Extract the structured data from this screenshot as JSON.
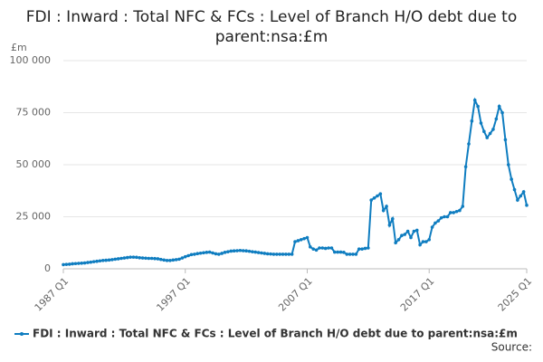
{
  "chart_data": {
    "type": "line",
    "title": "FDI : Inward : Total NFC & FCs : Level of Branch H/O debt due to parent:nsa:£m",
    "y_label": "£m",
    "source": "Source:",
    "categories": [
      "1987 Q1",
      null,
      null,
      null,
      null,
      null,
      null,
      null,
      null,
      null,
      null,
      null,
      null,
      null,
      null,
      null,
      null,
      null,
      null,
      null,
      null,
      null,
      null,
      null,
      null,
      null,
      null,
      null,
      null,
      null,
      null,
      null,
      null,
      null,
      null,
      null,
      null,
      null,
      null,
      null,
      "1997 Q1",
      null,
      null,
      null,
      null,
      null,
      null,
      null,
      null,
      null,
      null,
      null,
      null,
      null,
      null,
      null,
      null,
      null,
      null,
      null,
      null,
      null,
      null,
      null,
      null,
      null,
      null,
      null,
      null,
      null,
      null,
      null,
      null,
      null,
      null,
      null,
      null,
      null,
      null,
      null,
      "2007 Q1",
      null,
      null,
      null,
      null,
      null,
      null,
      null,
      null,
      null,
      null,
      null,
      null,
      null,
      null,
      null,
      null,
      null,
      null,
      null,
      null,
      null,
      null,
      null,
      null,
      null,
      null,
      null,
      null,
      null,
      null,
      null,
      null,
      null,
      null,
      null,
      null,
      null,
      null,
      null,
      "2017 Q1",
      null,
      null,
      null,
      null,
      null,
      null,
      null,
      null,
      null,
      null,
      null,
      null,
      null,
      null,
      null,
      null,
      null,
      null,
      null,
      null,
      null,
      null,
      null,
      null,
      null,
      null,
      null,
      null,
      null,
      null,
      null,
      "2025 Q1"
    ],
    "series": [
      {
        "name": "FDI : Inward : Total NFC & FCs : Level of Branch H/O debt due to parent:nsa:£m",
        "color": "#0f7dc0",
        "values": [
          2000,
          2100,
          2200,
          2400,
          2500,
          2600,
          2700,
          2800,
          3000,
          3200,
          3400,
          3600,
          3800,
          4000,
          4100,
          4200,
          4400,
          4600,
          4800,
          5000,
          5200,
          5400,
          5600,
          5600,
          5500,
          5300,
          5200,
          5100,
          5000,
          5000,
          4900,
          4800,
          4500,
          4200,
          4000,
          4000,
          4200,
          4400,
          4600,
          5200,
          5800,
          6300,
          6800,
          7000,
          7300,
          7500,
          7700,
          7900,
          8000,
          7600,
          7200,
          7000,
          7400,
          7900,
          8200,
          8500,
          8600,
          8700,
          8800,
          8700,
          8600,
          8400,
          8200,
          8000,
          7800,
          7600,
          7400,
          7200,
          7100,
          7000,
          7000,
          7000,
          7000,
          7000,
          7000,
          7000,
          13000,
          13500,
          14000,
          14500,
          15000,
          10500,
          9500,
          9000,
          10000,
          10000,
          9800,
          10000,
          10000,
          8000,
          8000,
          8000,
          7900,
          7000,
          7000,
          7000,
          7000,
          9500,
          9500,
          9800,
          10000,
          33000,
          34000,
          35000,
          36000,
          28000,
          30000,
          21000,
          24000,
          12500,
          14000,
          16000,
          16500,
          18000,
          15000,
          18000,
          18500,
          11500,
          13000,
          13000,
          14000,
          20000,
          22000,
          23000,
          24500,
          25000,
          25000,
          27000,
          27000,
          27500,
          28000,
          30000,
          49000,
          60000,
          71000,
          81000,
          78000,
          70000,
          66000,
          63000,
          65000,
          67000,
          72000,
          78000,
          75000,
          62000,
          50000,
          43000,
          38000,
          33000,
          35000,
          37000,
          30500
        ]
      }
    ],
    "ylim": [
      0,
      100000
    ],
    "yticks": [
      0,
      {
        "value": 25000,
        "label": "25 000"
      },
      {
        "value": 50000,
        "label": "50 000"
      },
      {
        "value": 75000,
        "label": "75 000"
      },
      {
        "value": 100000,
        "label": "100 000"
      }
    ],
    "grid": true
  }
}
